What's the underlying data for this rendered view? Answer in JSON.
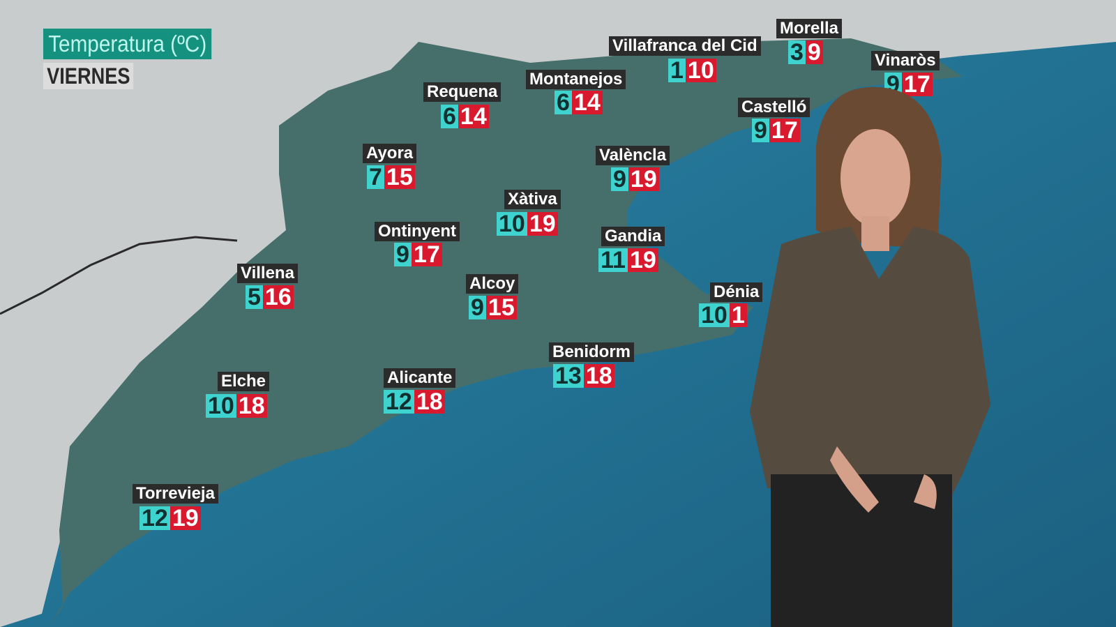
{
  "header": {
    "title": "Temperatura (ºC)",
    "day": "VIERNES"
  },
  "colors": {
    "min_bg": "#3fd3cf",
    "max_bg": "#d8192e",
    "label_bg": "#2b2b2b",
    "title_bg": "#14917f",
    "sea": "#1f6f8f",
    "land": "#3f6f6b"
  },
  "cities": [
    {
      "name": "Morella",
      "min": "3",
      "max": "9"
    },
    {
      "name": "Villafranca del Cid",
      "min": "1",
      "max": "10"
    },
    {
      "name": "Vinaròs",
      "min": "9",
      "max": "17"
    },
    {
      "name": "Montanejos",
      "min": "6",
      "max": "14"
    },
    {
      "name": "Requena",
      "min": "6",
      "max": "14"
    },
    {
      "name": "Castelló",
      "min": "9",
      "max": "17"
    },
    {
      "name": "Ayora",
      "min": "7",
      "max": "15"
    },
    {
      "name": "Valèncla",
      "min": "9",
      "max": "19"
    },
    {
      "name": "Xàtiva",
      "min": "10",
      "max": "19"
    },
    {
      "name": "Ontinyent",
      "min": "9",
      "max": "17"
    },
    {
      "name": "Gandia",
      "min": "11",
      "max": "19"
    },
    {
      "name": "Villena",
      "min": "5",
      "max": "16"
    },
    {
      "name": "Alcoy",
      "min": "9",
      "max": "15"
    },
    {
      "name": "Dénia",
      "min": "10",
      "max": "1"
    },
    {
      "name": "Benidorm",
      "min": "13",
      "max": "18"
    },
    {
      "name": "Alicante",
      "min": "12",
      "max": "18"
    },
    {
      "name": "Elche",
      "min": "10",
      "max": "18"
    },
    {
      "name": "Torrevieja",
      "min": "12",
      "max": "19"
    }
  ]
}
